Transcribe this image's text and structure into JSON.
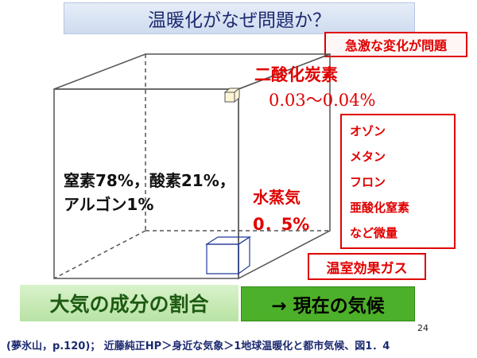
{
  "title": "温暖化がなぜ問題か？",
  "tag_rapid_change": "急激な変化が問題",
  "co2": {
    "label": "二酸化炭素",
    "value": "0.03〜0.04%"
  },
  "gas_list": [
    "オゾン",
    "メタン",
    "フロン",
    "亜酸化窒素",
    "など微量"
  ],
  "main_gases": [
    "窒素78%，酸素21%，",
    "アルゴン1%"
  ],
  "water_vapor": {
    "label": "水蒸気",
    "value": "0．5%"
  },
  "greenhouse_gases_label": "温室効果ガス",
  "composition_label": "大気の成分の割合",
  "climate_label": "→ 現在の気候",
  "page_number": "24",
  "citation": "(夢氷山，p.120)； 近藤純正HP＞身近な気象＞1地球温暖化と都市気候、図1．4",
  "colors": {
    "accent_red": "#e00000",
    "title_navy": "#1c2a70",
    "green": "#4db02a"
  }
}
